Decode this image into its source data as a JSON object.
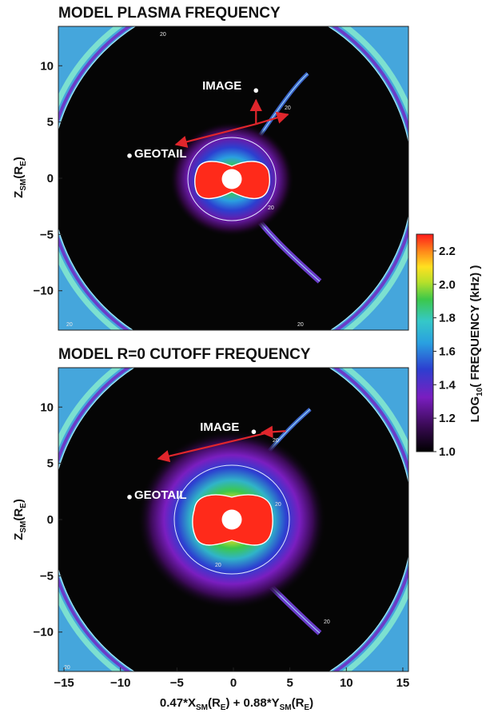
{
  "chart_data": [
    {
      "type": "heatmap",
      "title": "MODEL PLASMA FREQUENCY",
      "xlabel": "0.47*X_SM(R_E) + 0.88*Y_SM(R_E)",
      "ylabel": "Z_SM(R_E)",
      "xlim": [
        -15.5,
        15.5
      ],
      "ylim": [
        -13.5,
        13.5
      ],
      "yticks": [
        10,
        5,
        0,
        -5,
        -10
      ],
      "ytick_labels": [
        "10",
        "5",
        "0",
        "−5",
        "−10"
      ],
      "contour_label": "20",
      "spacecraft": [
        {
          "name": "IMAGE",
          "x": 2.0,
          "y": 7.8
        },
        {
          "name": "GEOTAIL",
          "x": -9.2,
          "y": 2.0
        }
      ]
    },
    {
      "type": "heatmap",
      "title": "MODEL R=0 CUTOFF  FREQUENCY",
      "xlabel": "0.47*X_SM(R_E) + 0.88*Y_SM(R_E)",
      "ylabel": "Z_SM(R_E)",
      "xlim": [
        -15.5,
        15.5
      ],
      "ylim": [
        -13.5,
        13.5
      ],
      "xticks": [
        -15,
        -10,
        -5,
        0,
        5,
        10,
        15
      ],
      "xtick_labels": [
        "−15",
        "−10",
        "−5",
        "0",
        "5",
        "10",
        "15"
      ],
      "yticks": [
        10,
        5,
        0,
        -5,
        -10
      ],
      "ytick_labels": [
        "10",
        "5",
        "0",
        "−5",
        "−10"
      ],
      "contour_label": "20",
      "spacecraft": [
        {
          "name": "IMAGE",
          "x": 1.8,
          "y": 7.8
        },
        {
          "name": "GEOTAIL",
          "x": -9.2,
          "y": 2.0
        }
      ]
    }
  ],
  "colorbar": {
    "label": "LOG",
    "label_sub": "10",
    "label_rest": "( FREQUENCY (kHz) )",
    "min": 1.0,
    "max": 2.3,
    "ticks": [
      2.2,
      2.0,
      1.8,
      1.6,
      1.4,
      1.2,
      1.0
    ],
    "tick_labels": [
      "2.2",
      "2.0",
      "1.8",
      "1.6",
      "1.4",
      "1.2",
      "1.0"
    ]
  },
  "axis_text": {
    "y_main": "Z",
    "y_sub": "SM",
    "y_tail": "(R",
    "y_sub2": "E",
    "y_close": ")",
    "x_part1": "0.47*X",
    "x_sub1": "SM",
    "x_part2": "(R",
    "x_sub2": "E",
    "x_part3": ") + 0.88*Y",
    "x_sub3": "SM",
    "x_part4": "(R",
    "x_sub4": "E",
    "x_part5": ")"
  },
  "colors": {
    "void": "#050505",
    "sheath": "#45a6dc",
    "core": "#ff2a1a",
    "arrow": "#e0262c"
  }
}
